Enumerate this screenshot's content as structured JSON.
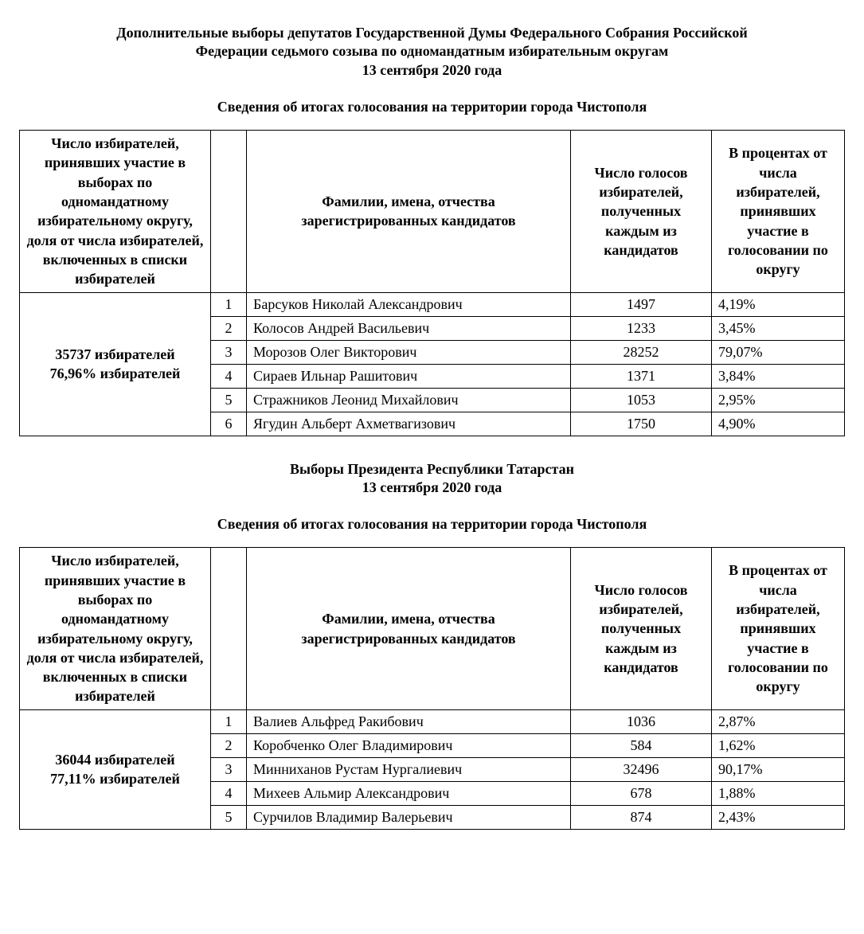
{
  "section1": {
    "title_line1": "Дополнительные выборы депутатов Государственной Думы Федерального Собрания Российской",
    "title_line2": "Федерации седьмого созыва по одномандатным избирательным округам",
    "title_line3": "13 сентября 2020 года",
    "subtitle": "Сведения об итогах голосования на территории города Чистополя",
    "headers": {
      "col1": "Число избирателей, принявших участие в выборах по одномандатному избирательному округу, доля от числа избирателей, включенных в списки избирателей",
      "col3": "Фамилии, имена, отчества зарегистрированных кандидатов",
      "col4": "Число голосов избирателей, полученных каждым из кандидатов",
      "col5": "В процентах от числа избирателей, принявших участие в голосовании по округу"
    },
    "summary_line1": "35737 избирателей",
    "summary_line2": "76,96% избирателей",
    "rows": [
      {
        "idx": "1",
        "name": "Барсуков Николай Александрович",
        "votes": "1497",
        "percent": "4,19%"
      },
      {
        "idx": "2",
        "name": "Колосов Андрей Васильевич",
        "votes": "1233",
        "percent": "3,45%"
      },
      {
        "idx": "3",
        "name": "Морозов Олег Викторович",
        "votes": "28252",
        "percent": "79,07%"
      },
      {
        "idx": "4",
        "name": "Сираев Ильнар Рашитович",
        "votes": "1371",
        "percent": "3,84%"
      },
      {
        "idx": "5",
        "name": "Стражников Леонид Михайлович",
        "votes": "1053",
        "percent": "2,95%"
      },
      {
        "idx": "6",
        "name": "Ягудин Альберт Ахметвагизович",
        "votes": "1750",
        "percent": "4,90%"
      }
    ]
  },
  "section2": {
    "title_line1": "Выборы Президента Республики Татарстан",
    "title_line2": "13 сентября 2020 года",
    "subtitle": "Сведения об итогах голосования на территории города Чистополя",
    "headers": {
      "col1": "Число избирателей, принявших участие в выборах по одномандатному избирательному округу, доля от числа избирателей, включенных в списки избирателей",
      "col3": "Фамилии, имена, отчества зарегистрированных кандидатов",
      "col4": "Число голосов избирателей, полученных каждым из кандидатов",
      "col5": "В процентах от числа избирателей, принявших участие в голосовании по округу"
    },
    "summary_line1": "36044 избирателей",
    "summary_line2": "77,11% избирателей",
    "rows": [
      {
        "idx": "1",
        "name": "Валиев Альфред Ракибович",
        "votes": "1036",
        "percent": "2,87%"
      },
      {
        "idx": "2",
        "name": "Коробченко Олег Владимирович",
        "votes": "584",
        "percent": "1,62%"
      },
      {
        "idx": "3",
        "name": "Минниханов Рустам Нургалиевич",
        "votes": "32496",
        "percent": "90,17%"
      },
      {
        "idx": "4",
        "name": "Михеев Альмир Александрович",
        "votes": "678",
        "percent": "1,88%"
      },
      {
        "idx": "5",
        "name": "Сурчилов Владимир Валерьевич",
        "votes": "874",
        "percent": "2,43%"
      }
    ]
  }
}
